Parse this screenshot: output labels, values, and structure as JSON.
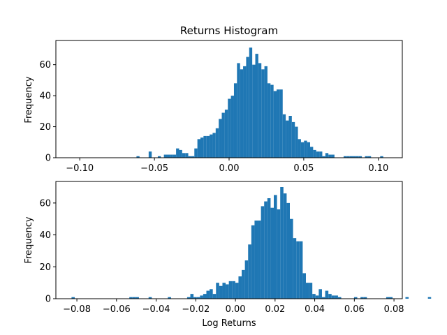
{
  "chart_data": [
    {
      "type": "bar",
      "title": "Returns Histogram",
      "xlabel": "",
      "ylabel": "Frequency",
      "xlim": [
        -0.116,
        0.116
      ],
      "ylim": [
        0,
        75.6
      ],
      "grid": false,
      "bar_color": "#1f77b4",
      "xticks": [
        -0.1,
        -0.05,
        0.0,
        0.05,
        0.1
      ],
      "xtick_labels": [
        "−0.10",
        "−0.05",
        "0.00",
        "0.05",
        "0.10"
      ],
      "yticks": [
        0,
        20,
        40,
        60
      ],
      "ytick_labels": [
        "0",
        "20",
        "40",
        "60"
      ],
      "bin_start": -0.0865,
      "bin_width": 0.00204,
      "values": [
        0,
        0,
        0,
        0,
        0,
        0,
        0,
        0,
        0,
        0,
        0,
        0,
        1,
        0,
        0,
        0,
        4,
        0,
        0,
        1,
        0,
        2,
        2,
        2,
        2,
        6,
        5,
        3,
        3,
        1,
        1,
        6,
        12,
        13,
        14,
        14,
        15,
        16,
        19,
        25,
        29,
        31,
        38,
        40,
        48,
        61,
        57,
        59,
        65,
        71,
        60,
        67,
        61,
        57,
        59,
        48,
        47,
        43,
        44,
        44,
        28,
        24,
        27,
        23,
        20,
        12,
        10,
        11,
        10,
        7,
        5,
        4,
        4,
        1,
        3,
        2,
        2,
        0,
        0,
        0,
        1,
        1,
        1,
        1,
        1,
        1,
        0,
        1,
        1,
        0,
        0,
        0,
        1
      ]
    },
    {
      "type": "bar",
      "title": "",
      "xlabel": "Log Returns",
      "ylabel": "Frequency",
      "xlim": [
        -0.0906,
        0.0842
      ],
      "ylim": [
        0,
        73.5
      ],
      "grid": false,
      "bar_color": "#1f77b4",
      "xticks": [
        -0.08,
        -0.06,
        -0.04,
        -0.02,
        0.0,
        0.02,
        0.04,
        0.06,
        0.08
      ],
      "xtick_labels": [
        "−0.08",
        "−0.06",
        "−0.04",
        "−0.02",
        "0.00",
        "0.02",
        "0.04",
        "0.06",
        "0.08"
      ],
      "yticks": [
        0,
        20,
        40,
        60
      ],
      "ytick_labels": [
        "0",
        "20",
        "40",
        "60"
      ],
      "bin_start": -0.0827,
      "bin_width": 0.00162,
      "values": [
        1,
        0,
        0,
        0,
        0,
        0,
        0,
        0,
        0,
        0,
        0,
        0,
        0,
        0,
        0,
        0,
        0,
        0,
        1,
        1,
        1,
        0,
        0,
        0,
        1,
        0,
        0,
        0,
        0,
        0,
        1,
        0,
        0,
        0,
        0,
        0,
        1,
        3,
        1,
        1,
        2,
        3,
        5,
        6,
        3,
        10,
        8,
        10,
        9,
        11,
        11,
        10,
        14,
        18,
        24,
        34,
        46,
        49,
        49,
        58,
        61,
        63,
        57,
        65,
        56,
        70,
        66,
        60,
        50,
        38,
        36,
        36,
        16,
        10,
        10,
        3,
        2,
        6,
        1,
        5,
        3,
        2,
        2,
        1,
        0,
        0,
        0,
        0,
        1,
        0,
        1,
        1,
        0,
        0,
        0,
        0,
        0,
        0,
        1,
        1,
        0,
        0,
        0,
        0,
        1,
        0,
        0,
        0,
        0,
        0,
        0,
        1
      ]
    }
  ]
}
